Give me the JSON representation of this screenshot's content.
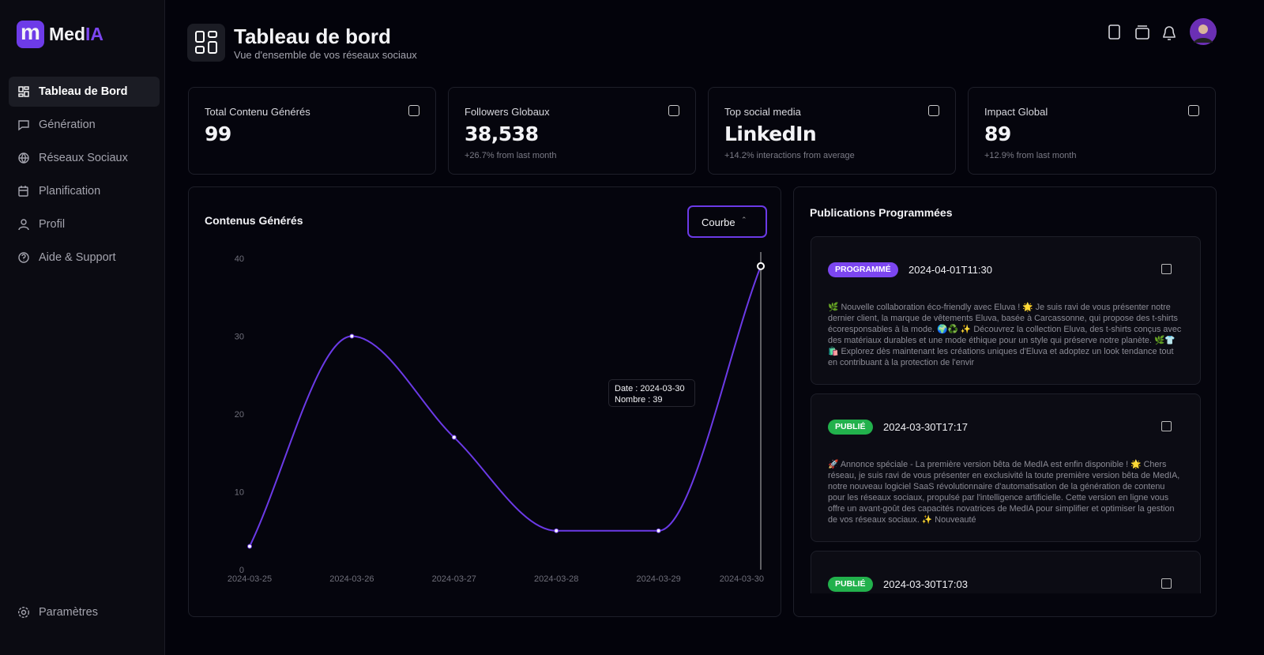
{
  "logo": {
    "icon": "m",
    "name_a": "Med",
    "name_b": "IA"
  },
  "nav": [
    "Tableau de Bord",
    "Génération",
    "Réseaux Sociaux",
    "Planification",
    "Profil",
    "Aide & Support"
  ],
  "settings": "Paramètres",
  "header": {
    "title": "Tableau de bord",
    "subtitle": "Vue d'ensemble de vos réseaux sociaux"
  },
  "stats": [
    {
      "label": "Total Contenu Générés",
      "value": "99"
    },
    {
      "label": "Followers Globaux",
      "value": "38,538",
      "note": "+26.7% from last month"
    },
    {
      "label": "Top social media",
      "value": "LinkedIn",
      "note": "+14.2% interactions from average"
    },
    {
      "label": "Impact Global",
      "value": "89",
      "note": "+12.9% from last month"
    }
  ],
  "chart_card": {
    "select": "Courbe",
    "tooltip": {
      "date": "Date : 2024-03-30",
      "count": "Nombre : 39"
    }
  },
  "chart_data": {
    "type": "line",
    "title": "Contenus Générés",
    "categories": [
      "2024-03-25",
      "2024-03-26",
      "2024-03-27",
      "2024-03-28",
      "2024-03-29",
      "2024-03-30"
    ],
    "series": [
      {
        "name": "Nombre",
        "color": "#6b3ae6",
        "values": [
          3,
          30,
          17,
          5,
          5,
          39
        ]
      }
    ],
    "ylim": [
      0,
      40
    ],
    "yticks": [
      0,
      10,
      20,
      30,
      40
    ],
    "grid": false
  },
  "publications": {
    "title": "Publications Programmées",
    "items": [
      {
        "status": "PROGRAMMÉ",
        "date": "2024-04-01T11:30",
        "text": "🌿 Nouvelle collaboration éco-friendly avec Eluva ! 🌟 Je suis ravi de vous présenter notre dernier client, la marque de vêtements Eluva, basée à Carcassonne, qui propose des t-shirts écoresponsables à la mode. 🌍♻️ ✨ Découvrez la collection Eluva, des t-shirts conçus avec des matériaux durables et une mode éthique pour un style qui préserve notre planète. 🌿👕🛍️ Explorez dès maintenant les créations uniques d'Eluva et adoptez un look tendance tout en contribuant à la protection de l'envir"
      },
      {
        "status": "PUBLIÉ",
        "date": "2024-03-30T17:17",
        "text": "🚀 Annonce spéciale - La première version bêta de MedIA est enfin disponible ! 🌟 Chers réseau, je suis ravi de vous présenter en exclusivité la toute première version bêta de MedIA, notre nouveau logiciel SaaS révolutionnaire d'automatisation de la génération de contenu pour les réseaux sociaux, propulsé par l'intelligence artificielle. Cette version en ligne vous offre un avant-goût des capacités novatrices de MedIA pour simplifier et optimiser la gestion de vos réseaux sociaux. ✨ Nouveauté"
      },
      {
        "status": "PUBLIÉ",
        "date": "2024-03-30T17:03"
      }
    ]
  }
}
